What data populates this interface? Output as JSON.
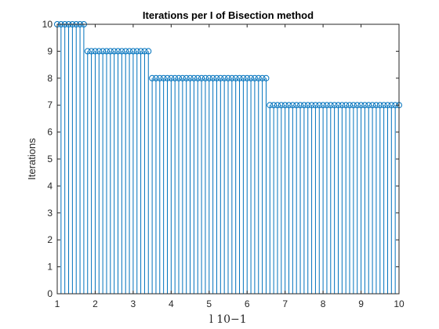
{
  "chart_data": {
    "type": "stem",
    "title": "Iterations per I of Bisection method",
    "xlabel": "l 10−1",
    "ylabel": "Iterations",
    "xlim": [
      1,
      10
    ],
    "ylim": [
      0,
      10
    ],
    "xticks": [
      "1",
      "2",
      "3",
      "4",
      "5",
      "6",
      "7",
      "8",
      "9",
      "10"
    ],
    "yticks": [
      "0",
      "1",
      "2",
      "3",
      "4",
      "5",
      "6",
      "7",
      "8",
      "9",
      "10"
    ],
    "grid": false,
    "box": true,
    "x_start": 1,
    "x_step": 0.1,
    "values": [
      10,
      10,
      10,
      10,
      10,
      10,
      10,
      10,
      9,
      9,
      9,
      9,
      9,
      9,
      9,
      9,
      9,
      9,
      9,
      9,
      9,
      9,
      9,
      9,
      9,
      8,
      8,
      8,
      8,
      8,
      8,
      8,
      8,
      8,
      8,
      8,
      8,
      8,
      8,
      8,
      8,
      8,
      8,
      8,
      8,
      8,
      8,
      8,
      8,
      8,
      8,
      8,
      8,
      8,
      8,
      8,
      7,
      7,
      7,
      7,
      7,
      7,
      7,
      7,
      7,
      7,
      7,
      7,
      7,
      7,
      7,
      7,
      7,
      7,
      7,
      7,
      7,
      7,
      7,
      7,
      7,
      7,
      7,
      7,
      7,
      7,
      7,
      7,
      7,
      7,
      7
    ],
    "colors": {
      "stem": "#0072bd",
      "axis": "#262626"
    }
  }
}
